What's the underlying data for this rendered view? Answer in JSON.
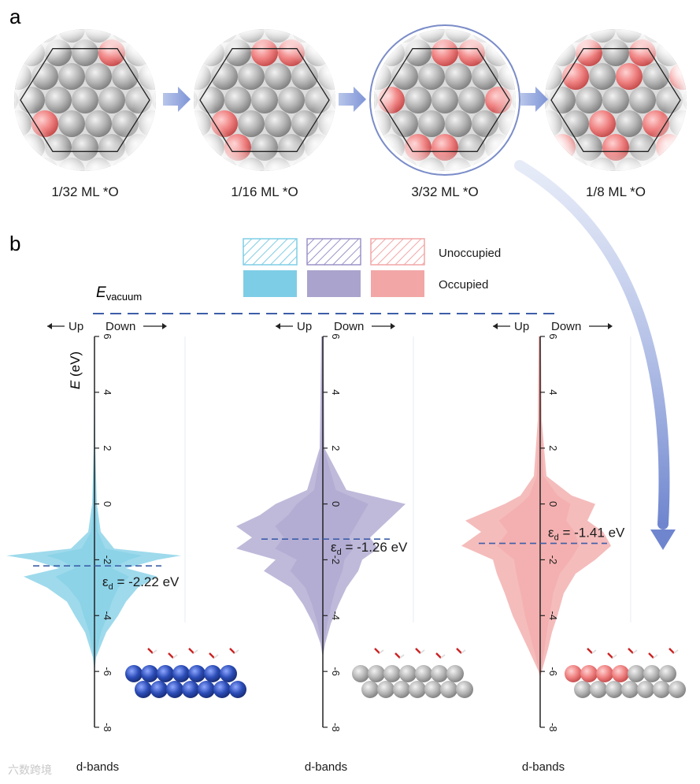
{
  "panel_a": {
    "letter": "a",
    "coverages": [
      "1/32 ML *O",
      "1/16 ML *O",
      "3/32 ML *O",
      "1/8 ML *O"
    ]
  },
  "panel_b": {
    "letter": "b",
    "legend": {
      "unoccupied_label": "Unoccupied",
      "occupied_label": "Occupied",
      "colors": [
        "#7ecde6",
        "#a9a3cd",
        "#f2a6a6"
      ]
    },
    "evacuum_main": "E",
    "evacuum_sub": "vacuum",
    "up_label": "Up",
    "down_label": "Down",
    "axis_label_italic": "E",
    "axis_label_unit": " (eV)",
    "ticks": [
      "6",
      "4",
      "2",
      "0",
      "-2",
      "-4",
      "-6",
      "-8"
    ],
    "xlabel": "d-bands",
    "dos": [
      {
        "ed_label": "ε",
        "ed_sub": "d",
        "ed_text": " = -2.22 eV",
        "ed_value": -2.22,
        "color": "#7ecde6",
        "atom_color": "#2a48a8"
      },
      {
        "ed_label": "ε",
        "ed_sub": "d",
        "ed_text": " = -1.26 eV",
        "ed_value": -1.26,
        "color": "#a9a3cd",
        "atom_color": "#a8a8a8"
      },
      {
        "ed_label": "ε",
        "ed_sub": "d",
        "ed_text": " = -1.41 eV",
        "ed_value": -1.41,
        "color": "#f2a6a6",
        "atom_color": "#a8a8a8"
      }
    ]
  },
  "watermark": "六数跨境"
}
